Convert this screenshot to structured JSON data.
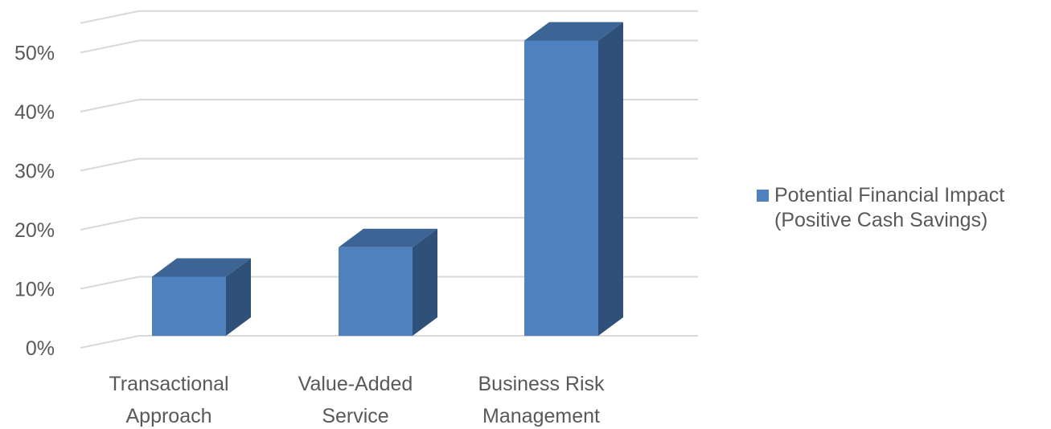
{
  "chart_data": {
    "type": "bar",
    "three_d": true,
    "categories": [
      [
        "Transactional",
        "Approach"
      ],
      [
        "Value-Added",
        "Service"
      ],
      [
        "Business Risk",
        "Management"
      ]
    ],
    "series": [
      {
        "name": [
          "Potential Financial Impact",
          "(Positive Cash Savings)"
        ],
        "values": [
          10,
          15,
          50
        ],
        "color_front": "#4e81bd",
        "color_top": "#3c6494",
        "color_side": "#2f5078"
      }
    ],
    "y_ticks": [
      "0%",
      "10%",
      "20%",
      "30%",
      "40%",
      "50%"
    ],
    "ylim": [
      0,
      55
    ],
    "grid": true,
    "legend_position": "right",
    "colors": {
      "text": "#595959",
      "grid": "#d9d9d9"
    }
  }
}
